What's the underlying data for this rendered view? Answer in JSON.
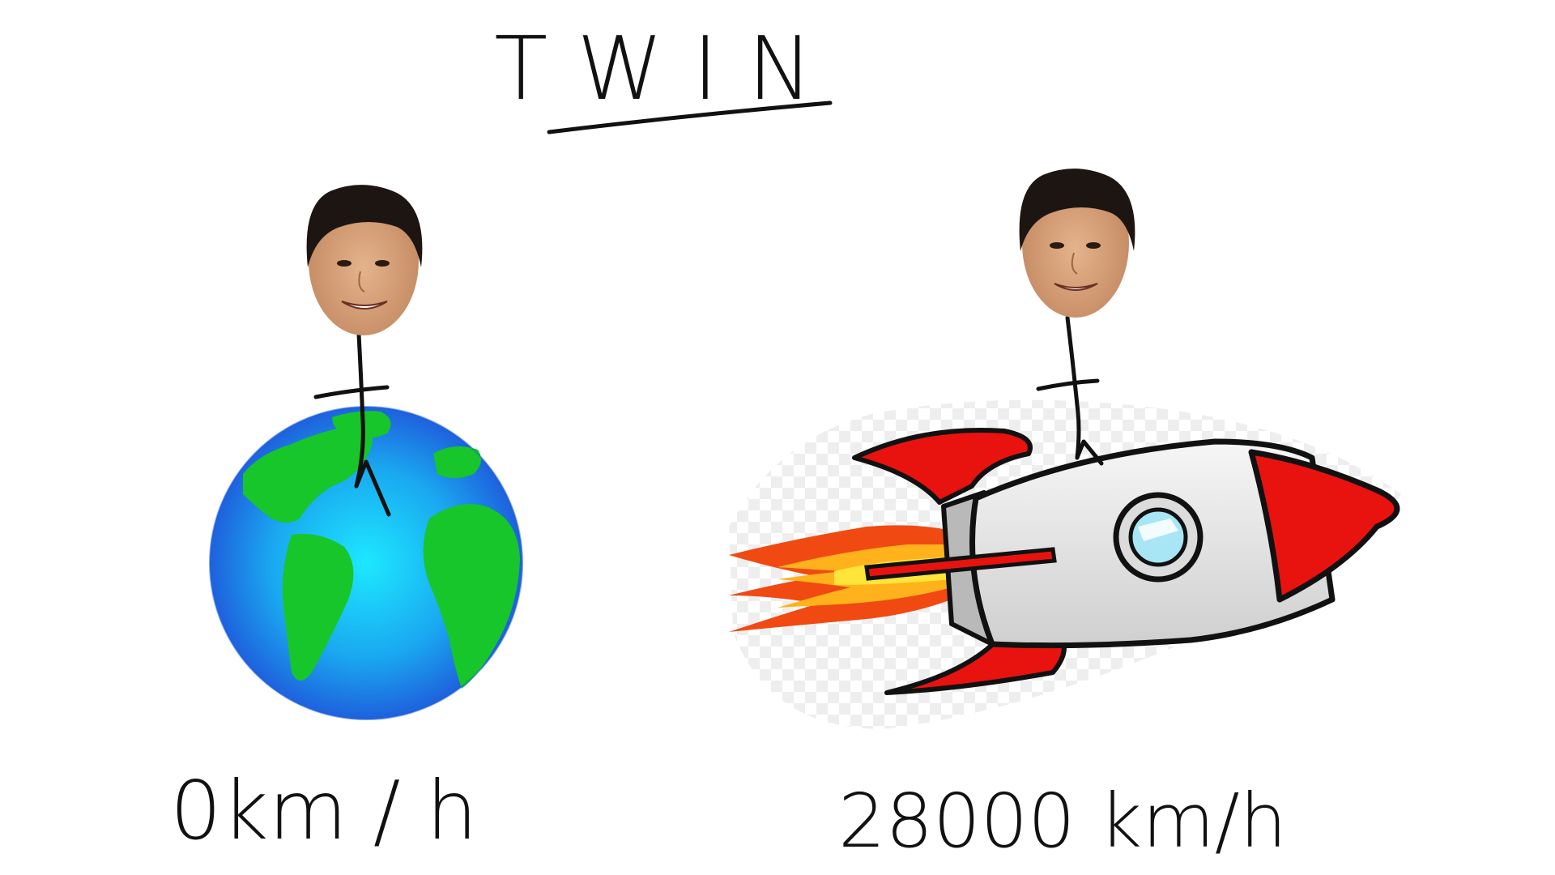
{
  "title": "TWIN",
  "left": {
    "speed_label": "0km / h",
    "body_icon": "earth-globe-icon"
  },
  "right": {
    "speed_label": "28000 km/h",
    "body_icon": "rocket-icon"
  },
  "colors": {
    "ink": "#111111",
    "ocean_center": "#19e4ff",
    "ocean_edge": "#1f5fe0",
    "land": "#17c62a",
    "rocket_red": "#e8120f",
    "rocket_body": "#e6e6e6",
    "flame_outer": "#f05a14",
    "flame_inner": "#ffd21e",
    "skin": "#d8a47c",
    "hair": "#1d1511"
  }
}
